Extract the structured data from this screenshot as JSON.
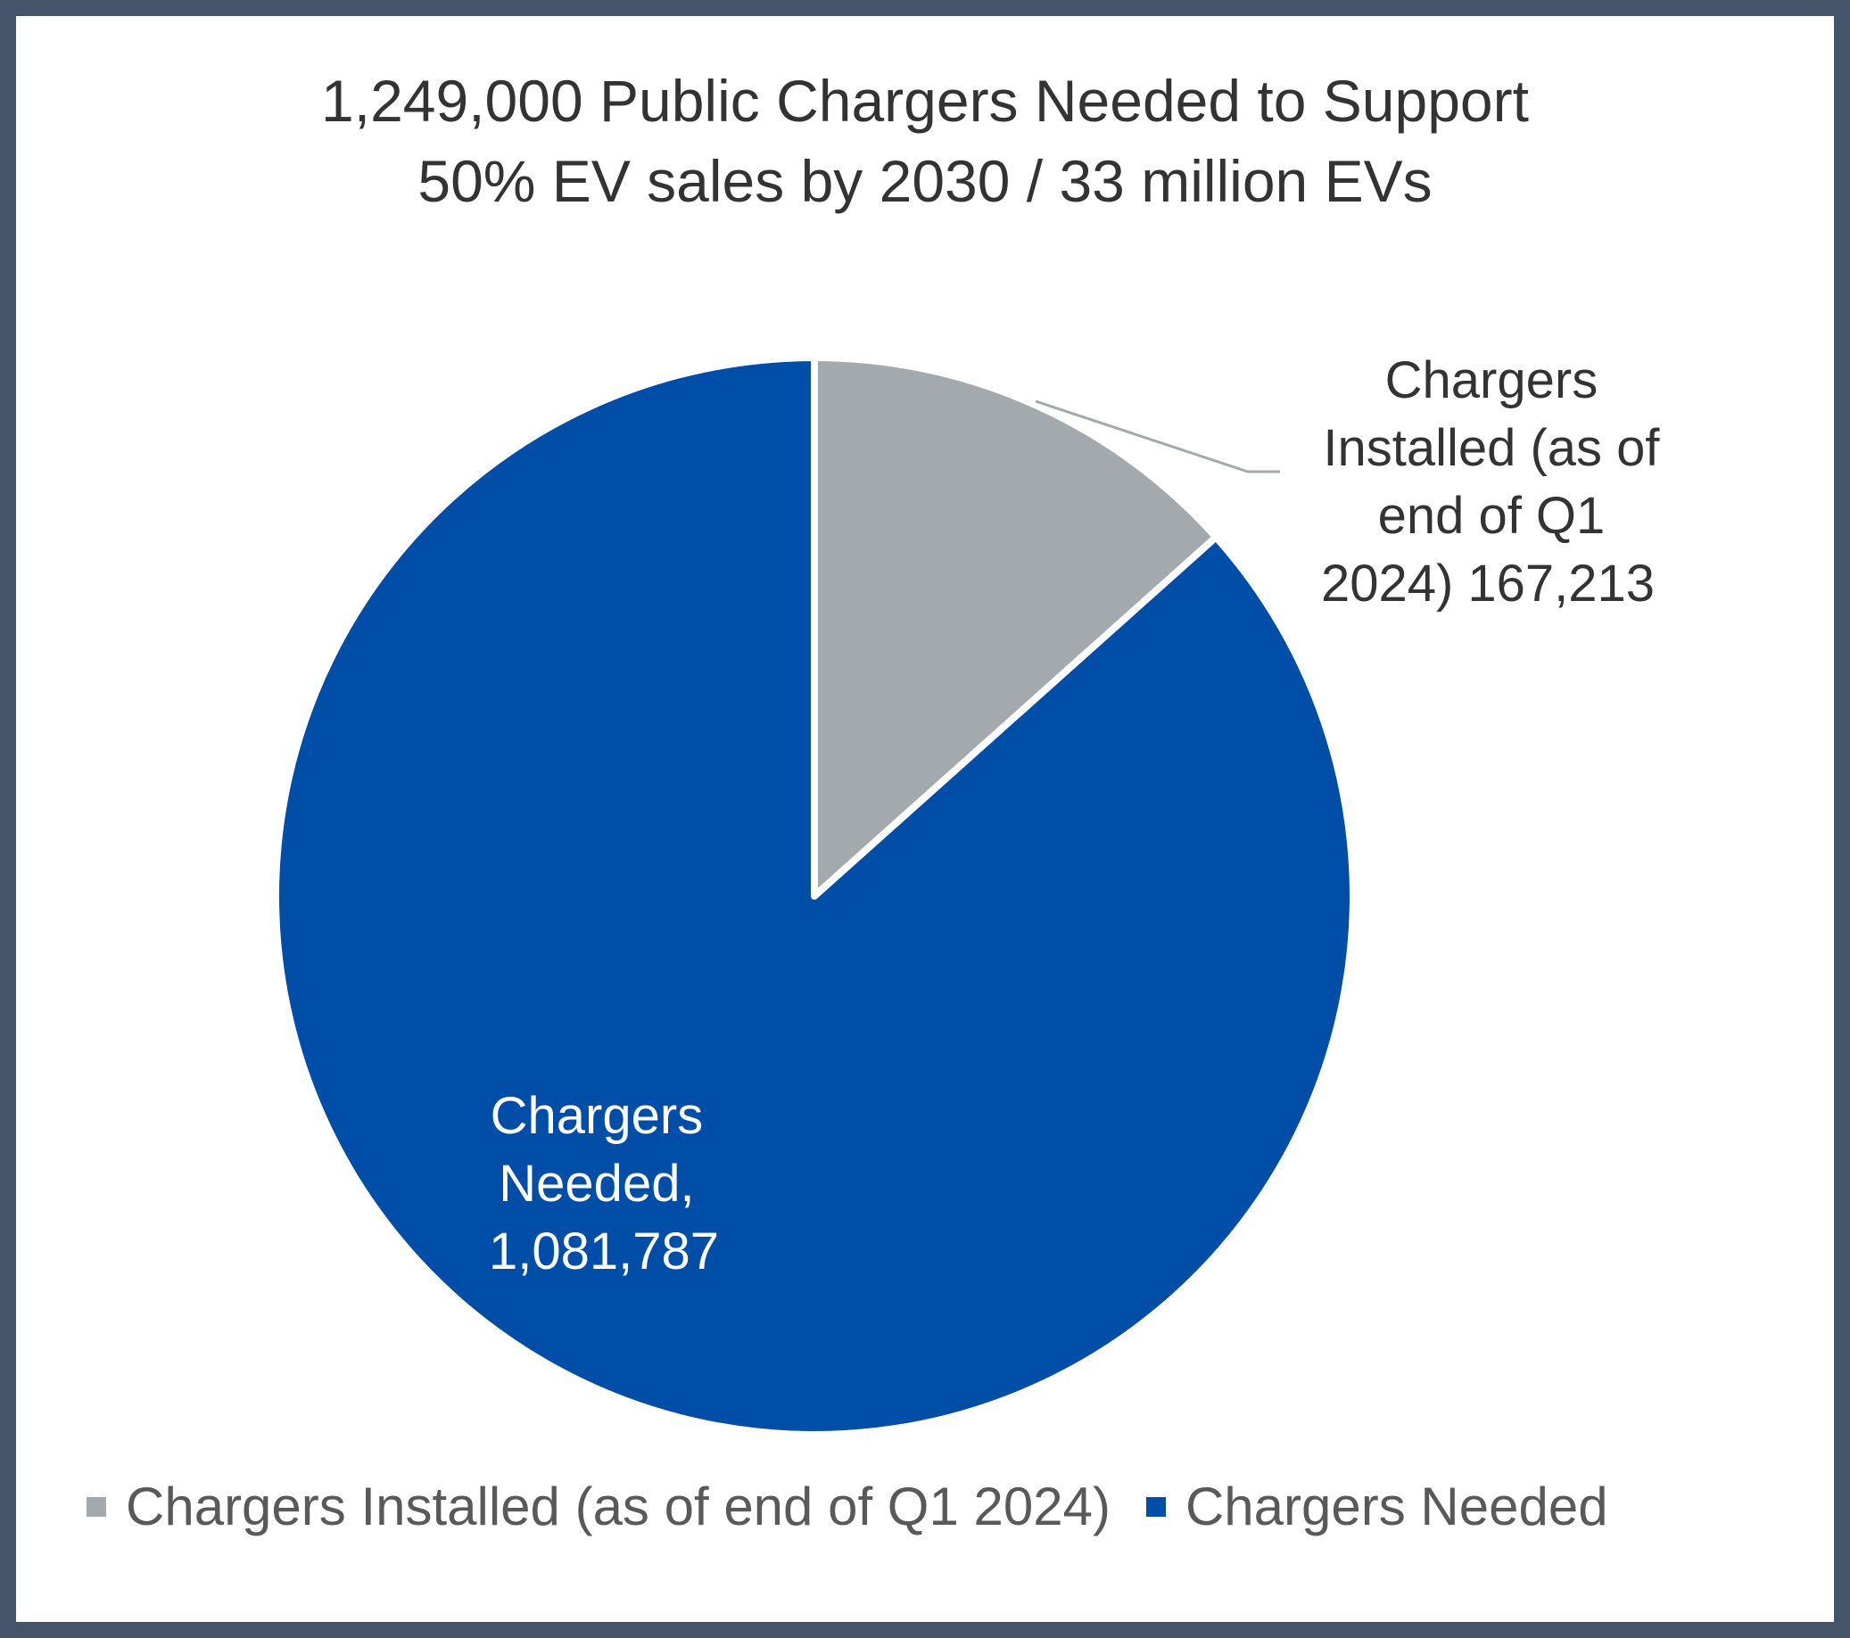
{
  "chart_data": {
    "type": "pie",
    "title": [
      "1,249,000 Public Chargers Needed to Support",
      "50% EV sales by 2030 / 33 million EVs"
    ],
    "slices": [
      {
        "name": "Chargers Installed (as of end of Q1 2024)",
        "value": 167213,
        "color": "#a3a9ac",
        "label_lines": [
          "Chargers",
          "Installed (as of",
          "end of Q1",
          "2024) 167,213"
        ]
      },
      {
        "name": "Chargers Needed",
        "value": 1081787,
        "color": "#004ea8",
        "label_lines": [
          "Chargers",
          "Needed,",
          "1,081,787"
        ]
      }
    ],
    "legend": {
      "position": "bottom",
      "entries": [
        "Chargers Installed (as of end of Q1 2024)",
        "Chargers Needed"
      ]
    }
  }
}
